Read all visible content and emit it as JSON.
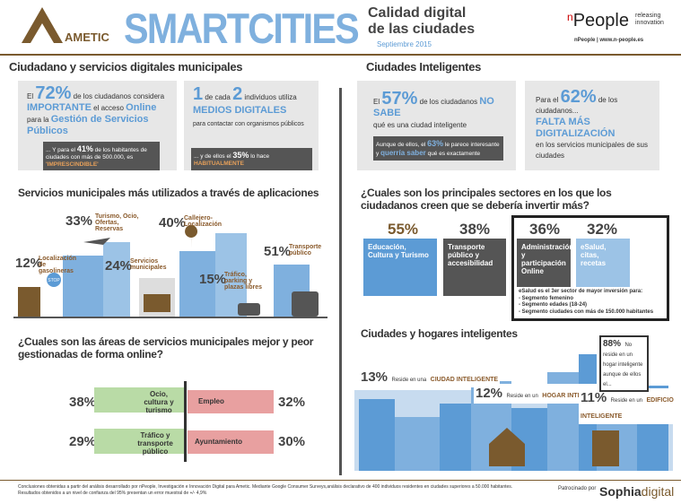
{
  "header": {
    "logo": "AMETIC",
    "title": "SMARTCITIES",
    "subtitle": [
      "Calidad digital",
      "de las ciudades"
    ],
    "date": "Septiembre 2015",
    "brand_initial": "n",
    "brand": "People",
    "tagline": [
      "releasing",
      "innovation"
    ],
    "url": "nPeople | www.n-people.es"
  },
  "left": {
    "heading": "Ciudadano y servicios digitales municipales",
    "box1": {
      "t1": "El",
      "pct": "72%",
      "t2": "de los ciudadanos considera",
      "t3": "IMPORTANTE",
      "t4": "el acceso",
      "t5": "Online",
      "t6": "para la",
      "t7": "Gestión de Servicios Públicos",
      "note1": "... Y para el",
      "note_pct": "41%",
      "note2": "de los habitantes de ciudades con más de 500.000, es",
      "note3": "'IMPRESCINDIBLE'"
    },
    "box2": {
      "t1": "1",
      "t2": "de cada",
      "t3": "2",
      "t4": "individuos utiliza",
      "t5": "MEDIOS DIGITALES",
      "t6": "para contactar con organismos públicos",
      "note1": "... y de ellos el",
      "note_pct": "35%",
      "note2": "lo hace",
      "note3": "HABITUALMENTE"
    },
    "apps": {
      "heading": "Servicios municipales más utilizados a través de aplicaciones",
      "items": [
        {
          "pct": "33%",
          "label": "Turismo, Ocio, Ofertas, Reservas"
        },
        {
          "pct": "40%",
          "label": "Callejero-Localización"
        },
        {
          "pct": "12%",
          "label": "Localización de gasolineras"
        },
        {
          "pct": "24%",
          "label": "Servicios municipales"
        },
        {
          "pct": "15%",
          "label": "Tráfico, parking y plazas libres"
        },
        {
          "pct": "51%",
          "label": "Transporte público"
        }
      ],
      "sign": "STOP"
    },
    "areas": {
      "heading": "¿Cuales son las áreas de servicios municipales mejor y peor gestionadas de forma online?",
      "best": [
        {
          "pct": "38%",
          "label": "Ocio, cultura y turismo"
        },
        {
          "pct": "29%",
          "label": "Tráfico y transporte público"
        }
      ],
      "worst": [
        {
          "pct": "32%",
          "label": "Empleo"
        },
        {
          "pct": "30%",
          "label": "Ayuntamiento"
        }
      ]
    }
  },
  "right": {
    "heading": "Ciudades Inteligentes",
    "box1": {
      "t1": "El",
      "pct": "57%",
      "t2": "de los ciudadanos",
      "t3": "NO SABE",
      "t4": "qué es una ciudad inteligente",
      "note1": "Aunque de ellos, el",
      "note_pct": "63%",
      "note2": "le parece interesante y",
      "note3": "querría saber",
      "note4": "qué es exactamente"
    },
    "box2": {
      "t1": "Para el",
      "pct": "62%",
      "t2": "de los ciudadanos...",
      "t3": "FALTA MÁS DIGITALIZACIÓN",
      "t4": "en los servicios municipales de sus ciudades"
    },
    "sectors": {
      "heading": "¿Cuales son los principales sectores en los que los ciudadanos creen que se debería invertir más?",
      "items": [
        {
          "pct": "55%",
          "label": "Educación, Cultura y Turismo"
        },
        {
          "pct": "38%",
          "label": "Transporte público y accesibilidad"
        },
        {
          "pct": "36%",
          "label": "Administración y participación Online"
        },
        {
          "pct": "32%",
          "label": "eSalud, citas, recetas"
        }
      ],
      "note": [
        "eSalud es el 3er sector de mayor inversión para:",
        "- Segmento femenino",
        "- Segmento edades (18-24)",
        "- Segmento ciudades con más de 150.000 habitantes"
      ]
    },
    "homes": {
      "heading": "Ciudades y hogares inteligentes",
      "items": [
        {
          "pct": "13%",
          "t": "Reside en una",
          "label": "CIUDAD INTELIGENTE"
        },
        {
          "pct": "12%",
          "t": "Reside en un",
          "label": "HOGAR INTELIGENTE"
        },
        {
          "pct": "11%",
          "t": "Reside en un",
          "label": "EDIFICIO INTELIGENTE"
        }
      ],
      "callout": {
        "pct": "88%",
        "t": "No reside en un hogar inteligente aunque de ellos el..."
      }
    }
  },
  "footer": {
    "text": [
      "Conclusiones obtenidas a partir del análisis desarrollado por nPeople, Investigación e Innovación Digital para Ametic. Mediante Google Consumer Surveys,análisis declarativo de 400 individuos residentes en ciudades superiores a 50.000 habitantes.",
      "Resultados obtenidos a un nivel de confianza del 95% presentan un error muestral de +/- 4,9%"
    ],
    "sponsor_label": "Patrocinado por",
    "sponsor": "Sophia",
    "sponsor2": "digital"
  }
}
